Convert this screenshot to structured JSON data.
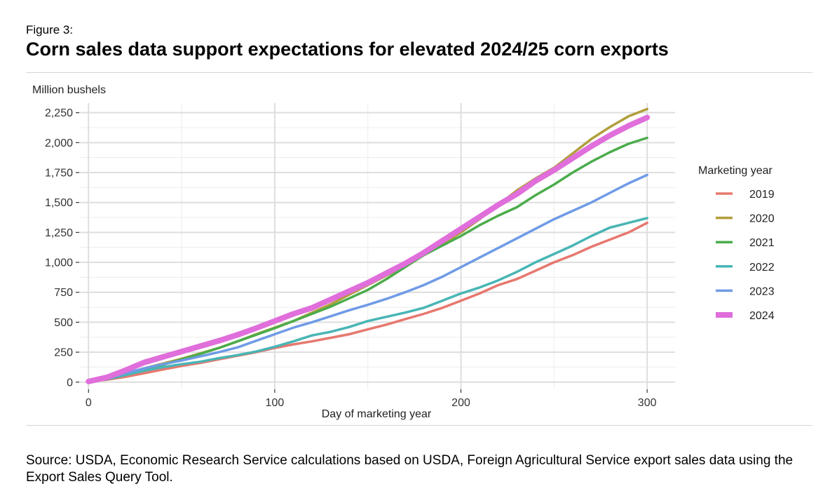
{
  "figure": {
    "label": "Figure 3:",
    "title": "Corn sales data support expectations for elevated 2024/25 corn exports",
    "source": "Source: USDA, Economic Research Service calculations based on USDA, Foreign Agricultural Service export sales data using the Export Sales Query Tool."
  },
  "chart_data": {
    "type": "line",
    "title": "Corn sales data support expectations for elevated 2024/25 corn exports",
    "xlabel": "Day of marketing year",
    "ylabel": "Million bushels",
    "xlim": [
      -5,
      315
    ],
    "ylim": [
      -60,
      2330
    ],
    "x_ticks": [
      0,
      100,
      200,
      300
    ],
    "x_tick_labels": [
      "0",
      "100",
      "200",
      "300"
    ],
    "y_ticks": [
      0,
      250,
      500,
      750,
      1000,
      1250,
      1500,
      1750,
      2000,
      2250
    ],
    "y_tick_labels": [
      "0",
      "250",
      "500",
      "750",
      "1,000",
      "1,250",
      "1,500",
      "1,750",
      "2,000",
      "2,250"
    ],
    "grid": true,
    "legend": {
      "title": "Marketing year",
      "position": "right"
    },
    "x": [
      0,
      10,
      20,
      30,
      40,
      50,
      60,
      70,
      80,
      90,
      100,
      110,
      120,
      130,
      140,
      150,
      160,
      170,
      180,
      190,
      200,
      210,
      220,
      230,
      240,
      250,
      260,
      270,
      280,
      290,
      300
    ],
    "series": [
      {
        "name": "2019",
        "color": "#E6786F",
        "values": [
          5,
          20,
          45,
          75,
          105,
          135,
          160,
          190,
          220,
          250,
          285,
          315,
          340,
          370,
          400,
          440,
          480,
          525,
          570,
          620,
          680,
          740,
          810,
          860,
          930,
          1000,
          1060,
          1130,
          1190,
          1250,
          1330
        ]
      },
      {
        "name": "2020",
        "color": "#B09E3B",
        "values": [
          5,
          30,
          70,
          115,
          155,
          195,
          240,
          285,
          340,
          400,
          455,
          510,
          580,
          650,
          730,
          810,
          890,
          970,
          1060,
          1150,
          1250,
          1360,
          1480,
          1600,
          1700,
          1790,
          1910,
          2030,
          2130,
          2220,
          2280
        ]
      },
      {
        "name": "2021",
        "color": "#4BAC4B",
        "values": [
          5,
          25,
          60,
          100,
          145,
          190,
          235,
          285,
          340,
          395,
          450,
          510,
          570,
          630,
          700,
          770,
          860,
          960,
          1060,
          1140,
          1220,
          1310,
          1390,
          1460,
          1560,
          1650,
          1750,
          1840,
          1920,
          1990,
          2040
        ]
      },
      {
        "name": "2022",
        "color": "#49B5B5",
        "values": [
          5,
          25,
          60,
          95,
          125,
          150,
          170,
          200,
          225,
          255,
          295,
          340,
          390,
          420,
          460,
          510,
          545,
          580,
          620,
          680,
          740,
          790,
          850,
          920,
          1000,
          1070,
          1140,
          1220,
          1290,
          1330,
          1370
        ]
      },
      {
        "name": "2023",
        "color": "#6F9BE6",
        "values": [
          5,
          30,
          75,
          115,
          150,
          180,
          215,
          250,
          290,
          345,
          400,
          455,
          500,
          550,
          600,
          645,
          695,
          750,
          810,
          880,
          960,
          1040,
          1120,
          1200,
          1280,
          1360,
          1430,
          1500,
          1580,
          1660,
          1730
        ]
      },
      {
        "name": "2024",
        "color": "#E06EDB",
        "values": [
          5,
          40,
          100,
          165,
          210,
          255,
          300,
          345,
          395,
          450,
          510,
          570,
          620,
          690,
          760,
          830,
          910,
          990,
          1080,
          1180,
          1280,
          1380,
          1480,
          1570,
          1680,
          1770,
          1870,
          1970,
          2060,
          2140,
          2210
        ]
      }
    ]
  }
}
